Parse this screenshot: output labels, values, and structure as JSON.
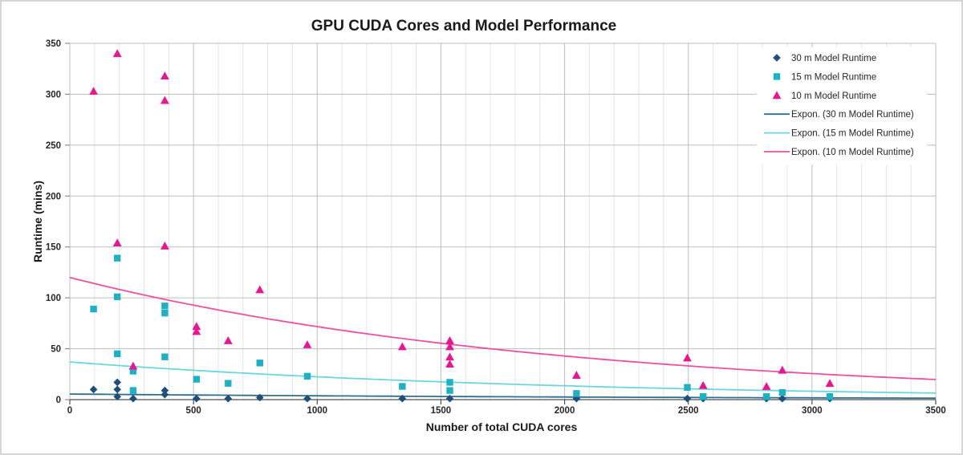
{
  "chart_data": {
    "type": "scatter",
    "title": "GPU CUDA Cores and Model Performance",
    "xlabel": "Number of total CUDA cores",
    "ylabel": "Runtime (mins)",
    "xlim": [
      0,
      3500
    ],
    "ylim": [
      0,
      350
    ],
    "x_ticks": [
      0,
      500,
      1000,
      1500,
      2000,
      2500,
      3000,
      3500
    ],
    "x_minor_grid_step": 100,
    "y_ticks": [
      0,
      50,
      100,
      150,
      200,
      250,
      300,
      350
    ],
    "grid": true,
    "legend_position": "top-right-inside",
    "colors": {
      "grid_minor": "#e4e4e4",
      "grid_major": "#bdbdbd",
      "axis_line": "#4d4d4d",
      "y_tick_mark": "#8c8c8c",
      "plot_background": "#ffffff"
    },
    "series": [
      {
        "name": "30 m Model Runtime",
        "marker": "diamond",
        "color": "#1F4E79",
        "points": [
          [
            96,
            10
          ],
          [
            192,
            17
          ],
          [
            192,
            10
          ],
          [
            192,
            3
          ],
          [
            256,
            1
          ],
          [
            384,
            9
          ],
          [
            384,
            5
          ],
          [
            512,
            1
          ],
          [
            640,
            1
          ],
          [
            768,
            2
          ],
          [
            960,
            1
          ],
          [
            1344,
            1
          ],
          [
            1536,
            1
          ],
          [
            2048,
            1
          ],
          [
            2496,
            1
          ],
          [
            2560,
            1
          ],
          [
            2816,
            1
          ],
          [
            2880,
            1
          ],
          [
            3072,
            1
          ]
        ]
      },
      {
        "name": "15 m Model Runtime",
        "marker": "square",
        "color": "#1FB0C4",
        "points": [
          [
            96,
            89
          ],
          [
            192,
            139
          ],
          [
            192,
            101
          ],
          [
            192,
            45
          ],
          [
            256,
            28
          ],
          [
            256,
            9
          ],
          [
            384,
            92
          ],
          [
            384,
            85
          ],
          [
            384,
            42
          ],
          [
            512,
            20
          ],
          [
            640,
            16
          ],
          [
            768,
            36
          ],
          [
            960,
            23
          ],
          [
            1344,
            13
          ],
          [
            1536,
            17
          ],
          [
            1536,
            9
          ],
          [
            2048,
            6
          ],
          [
            2496,
            12
          ],
          [
            2560,
            3
          ],
          [
            2816,
            3
          ],
          [
            2880,
            7
          ],
          [
            3072,
            3
          ]
        ]
      },
      {
        "name": "10 m Model Runtime",
        "marker": "triangle",
        "color": "#E81690",
        "points": [
          [
            96,
            303
          ],
          [
            192,
            340
          ],
          [
            192,
            154
          ],
          [
            256,
            33
          ],
          [
            384,
            318
          ],
          [
            384,
            294
          ],
          [
            384,
            151
          ],
          [
            512,
            72
          ],
          [
            512,
            67
          ],
          [
            640,
            58
          ],
          [
            768,
            108
          ],
          [
            960,
            54
          ],
          [
            1344,
            52
          ],
          [
            1536,
            58
          ],
          [
            1536,
            52
          ],
          [
            1536,
            42
          ],
          [
            1536,
            35
          ],
          [
            2048,
            24
          ],
          [
            2496,
            41
          ],
          [
            2560,
            14
          ],
          [
            2816,
            13
          ],
          [
            2880,
            29
          ],
          [
            3072,
            16
          ]
        ]
      }
    ],
    "trendlines": [
      {
        "name": "Expon. (30 m Model Runtime)",
        "color": "#2E6F91",
        "y_at_0": 5.5,
        "decay_k": 0.00038
      },
      {
        "name": "Expon. (15 m Model Runtime)",
        "color": "#6BD6DE",
        "y_at_0": 37,
        "decay_k": 0.0005
      },
      {
        "name": "Expon. (10 m Model Runtime)",
        "color": "#ED4FA1",
        "y_at_0": 120,
        "decay_k": 0.000515
      }
    ]
  }
}
